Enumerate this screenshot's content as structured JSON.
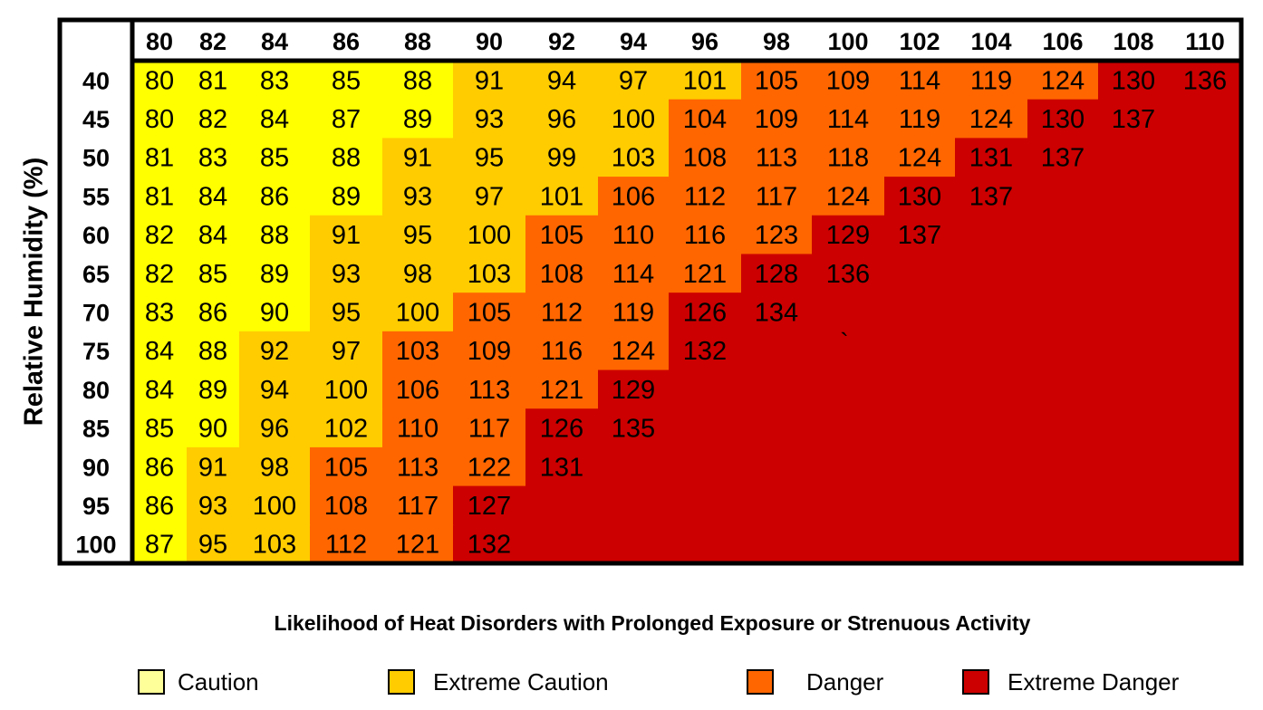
{
  "chart_data": {
    "type": "heatmap",
    "title": "",
    "ylabel": "Relative Humidity (%)",
    "xlabel": "",
    "x": [
      80,
      82,
      84,
      86,
      88,
      90,
      92,
      94,
      96,
      98,
      100,
      102,
      104,
      106,
      108,
      110
    ],
    "y": [
      40,
      45,
      50,
      55,
      60,
      65,
      70,
      75,
      80,
      85,
      90,
      95,
      100
    ],
    "values": [
      [
        80,
        81,
        83,
        85,
        88,
        91,
        94,
        97,
        101,
        105,
        109,
        114,
        119,
        124,
        130,
        136
      ],
      [
        80,
        82,
        84,
        87,
        89,
        93,
        96,
        100,
        104,
        109,
        114,
        119,
        124,
        130,
        137,
        null
      ],
      [
        81,
        83,
        85,
        88,
        91,
        95,
        99,
        103,
        108,
        113,
        118,
        124,
        131,
        137,
        null,
        null
      ],
      [
        81,
        84,
        86,
        89,
        93,
        97,
        101,
        106,
        112,
        117,
        124,
        130,
        137,
        null,
        null,
        null
      ],
      [
        82,
        84,
        88,
        91,
        95,
        100,
        105,
        110,
        116,
        123,
        129,
        137,
        null,
        null,
        null,
        null
      ],
      [
        82,
        85,
        89,
        93,
        98,
        103,
        108,
        114,
        121,
        128,
        136,
        null,
        null,
        null,
        null,
        null
      ],
      [
        83,
        86,
        90,
        95,
        100,
        105,
        112,
        119,
        126,
        134,
        null,
        null,
        null,
        null,
        null,
        null
      ],
      [
        84,
        88,
        92,
        97,
        103,
        109,
        116,
        124,
        132,
        null,
        null,
        null,
        null,
        null,
        null,
        null
      ],
      [
        84,
        89,
        94,
        100,
        106,
        113,
        121,
        129,
        null,
        null,
        null,
        null,
        null,
        null,
        null,
        null
      ],
      [
        85,
        90,
        96,
        102,
        110,
        117,
        126,
        135,
        null,
        null,
        null,
        null,
        null,
        null,
        null,
        null
      ],
      [
        86,
        91,
        98,
        105,
        113,
        122,
        131,
        null,
        null,
        null,
        null,
        null,
        null,
        null,
        null,
        null
      ],
      [
        86,
        93,
        100,
        108,
        117,
        127,
        null,
        null,
        null,
        null,
        null,
        null,
        null,
        null,
        null,
        null
      ],
      [
        87,
        95,
        103,
        112,
        121,
        132,
        null,
        null,
        null,
        null,
        null,
        null,
        null,
        null,
        null,
        null
      ]
    ],
    "categories_matrix": [
      [
        "C",
        "C",
        "C",
        "C",
        "C",
        "EC",
        "EC",
        "EC",
        "EC",
        "D",
        "D",
        "D",
        "D",
        "D",
        "ED",
        "ED"
      ],
      [
        "C",
        "C",
        "C",
        "C",
        "C",
        "EC",
        "EC",
        "EC",
        "D",
        "D",
        "D",
        "D",
        "D",
        "ED",
        "ED",
        "ED"
      ],
      [
        "C",
        "C",
        "C",
        "C",
        "EC",
        "EC",
        "EC",
        "EC",
        "D",
        "D",
        "D",
        "D",
        "ED",
        "ED",
        "ED",
        "ED"
      ],
      [
        "C",
        "C",
        "C",
        "C",
        "EC",
        "EC",
        "EC",
        "D",
        "D",
        "D",
        "D",
        "ED",
        "ED",
        "ED",
        "ED",
        "ED"
      ],
      [
        "C",
        "C",
        "C",
        "EC",
        "EC",
        "EC",
        "D",
        "D",
        "D",
        "D",
        "ED",
        "ED",
        "ED",
        "ED",
        "ED",
        "ED"
      ],
      [
        "C",
        "C",
        "C",
        "EC",
        "EC",
        "EC",
        "D",
        "D",
        "D",
        "ED",
        "ED",
        "ED",
        "ED",
        "ED",
        "ED",
        "ED"
      ],
      [
        "C",
        "C",
        "C",
        "EC",
        "EC",
        "D",
        "D",
        "D",
        "ED",
        "ED",
        "ED",
        "ED",
        "ED",
        "ED",
        "ED",
        "ED"
      ],
      [
        "C",
        "C",
        "EC",
        "EC",
        "D",
        "D",
        "D",
        "D",
        "ED",
        "ED",
        "ED",
        "ED",
        "ED",
        "ED",
        "ED",
        "ED"
      ],
      [
        "C",
        "C",
        "EC",
        "EC",
        "D",
        "D",
        "D",
        "ED",
        "ED",
        "ED",
        "ED",
        "ED",
        "ED",
        "ED",
        "ED",
        "ED"
      ],
      [
        "C",
        "C",
        "EC",
        "EC",
        "D",
        "D",
        "ED",
        "ED",
        "ED",
        "ED",
        "ED",
        "ED",
        "ED",
        "ED",
        "ED",
        "ED"
      ],
      [
        "C",
        "EC",
        "EC",
        "D",
        "D",
        "D",
        "ED",
        "ED",
        "ED",
        "ED",
        "ED",
        "ED",
        "ED",
        "ED",
        "ED",
        "ED"
      ],
      [
        "C",
        "EC",
        "EC",
        "D",
        "D",
        "ED",
        "ED",
        "ED",
        "ED",
        "ED",
        "ED",
        "ED",
        "ED",
        "ED",
        "ED",
        "ED"
      ],
      [
        "C",
        "EC",
        "EC",
        "D",
        "D",
        "ED",
        "ED",
        "ED",
        "ED",
        "ED",
        "ED",
        "ED",
        "ED",
        "ED",
        "ED",
        "ED"
      ]
    ],
    "stray_mark": "`",
    "subtitle": "Likelihood of Heat Disorders with Prolonged Exposure or Strenuous Activity",
    "legend_position": "bottom",
    "legend": [
      {
        "key": "C",
        "label": "Caution",
        "color": "#ffff99"
      },
      {
        "key": "EC",
        "label": "Extreme Caution",
        "color": "#ffcc00"
      },
      {
        "key": "D",
        "label": "Danger",
        "color": "#ff6600"
      },
      {
        "key": "ED",
        "label": "Extreme Danger",
        "color": "#cc0000"
      }
    ],
    "cell_colors": {
      "C": "#ffff00",
      "EC": "#ffcc00",
      "D": "#ff6600",
      "ED": "#cc0000"
    },
    "border_color": "#000000",
    "header_background": "#ffffff"
  }
}
